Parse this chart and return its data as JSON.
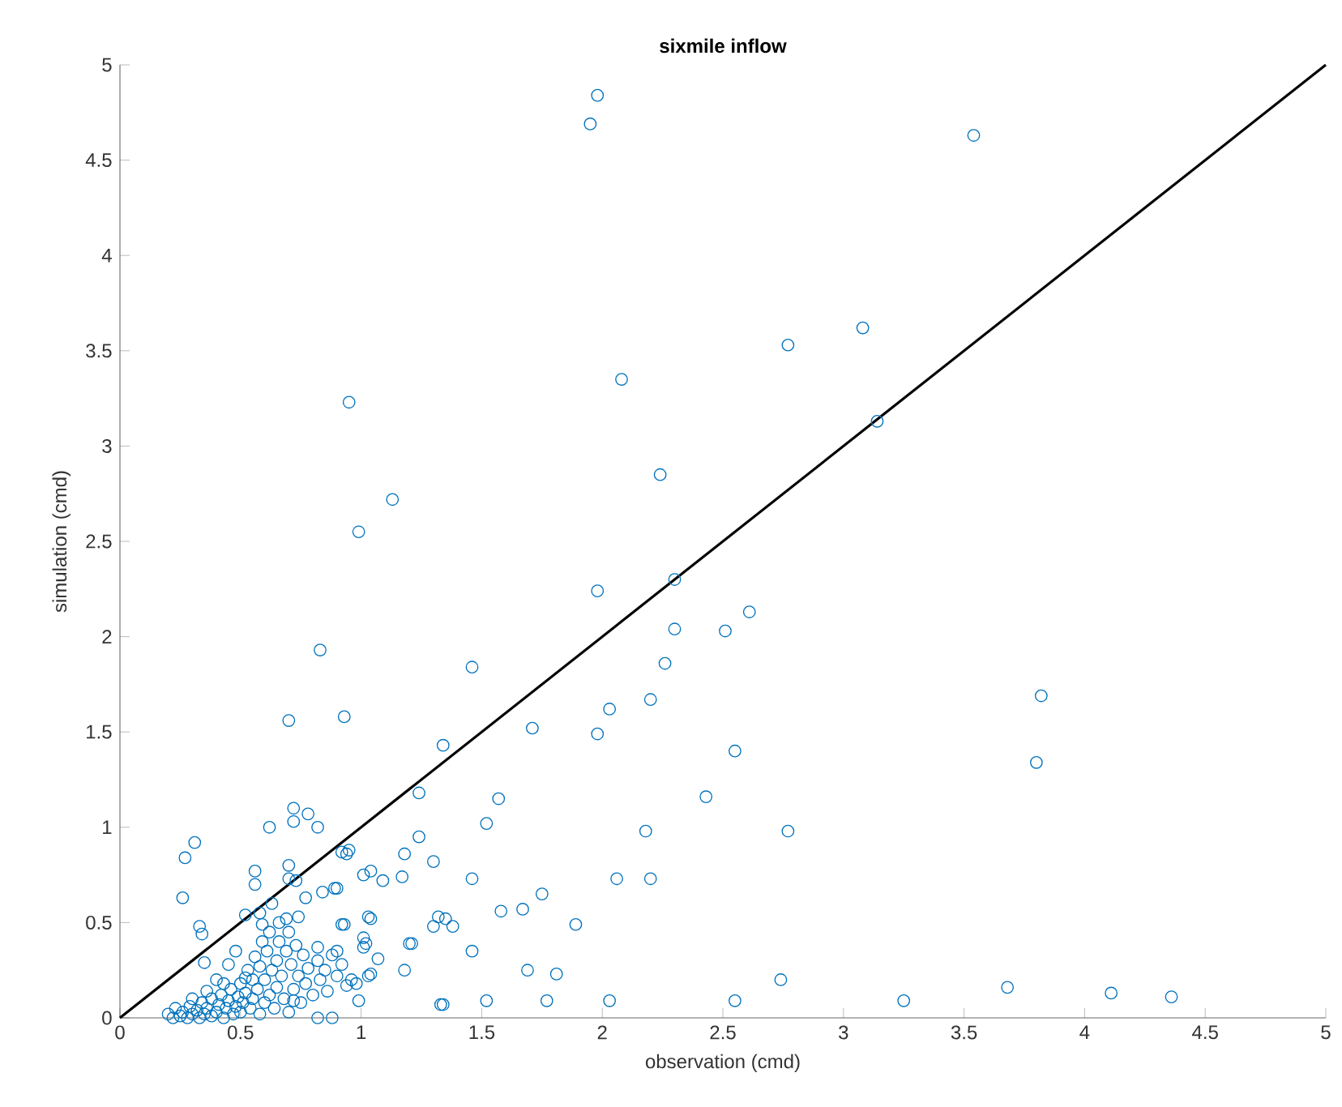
{
  "chart_data": {
    "type": "scatter",
    "title": "sixmile inflow",
    "xlabel": "observation (cmd)",
    "ylabel": "simulation (cmd)",
    "xlim": [
      0,
      5
    ],
    "ylim": [
      0,
      5
    ],
    "xticks": [
      0,
      0.5,
      1,
      1.5,
      2,
      2.5,
      3,
      3.5,
      4,
      4.5,
      5
    ],
    "yticks": [
      0,
      0.5,
      1,
      1.5,
      2,
      2.5,
      3,
      3.5,
      4,
      4.5,
      5
    ],
    "grid": false,
    "legend": false,
    "series": [
      {
        "marker": "circle",
        "color": "#0072bd",
        "x": [
          1.98,
          1.95,
          3.54,
          0.95,
          2.08,
          3.08,
          2.77,
          3.14,
          1.13,
          2.24,
          0.99,
          2.3,
          1.98,
          2.61,
          2.51,
          2.3,
          2.26,
          0.83,
          1.46,
          3.82,
          0.7,
          0.93,
          2.03,
          2.2,
          1.71,
          1.98,
          1.34,
          2.55,
          3.8,
          2.43,
          1.57,
          1.24,
          2.77,
          2.18,
          1.52,
          2.06,
          2.2,
          1.46,
          1.3,
          1.18,
          1.24,
          1.17,
          1.09,
          1.04,
          1.01,
          0.94,
          0.95,
          0.89,
          1.75,
          1.58,
          1.67,
          1.89,
          0.93,
          1.04,
          1.3,
          1.35,
          1.38,
          1.01,
          1.01,
          1.2,
          1.07,
          1.46,
          1.18,
          1.03,
          1.69,
          1.81,
          0.99,
          1.33,
          1.34,
          1.52,
          1.77,
          2.03,
          2.55,
          2.74,
          3.25,
          3.68,
          4.11,
          4.36,
          0.72,
          0.78,
          0.72,
          0.82,
          0.62,
          0.31,
          0.27,
          0.92,
          0.7,
          0.56,
          0.7,
          0.73,
          0.56,
          0.26,
          0.9,
          0.84,
          0.77,
          0.52,
          0.33,
          0.34,
          0.74,
          1.03,
          1.32,
          0.92,
          0.59,
          0.69,
          1.02,
          1.21,
          0.82,
          0.9,
          0.35,
          0.43,
          0.52,
          0.96,
          0.98,
          1.04,
          0.72,
          0.82,
          0.88,
          0.2,
          0.22,
          0.23,
          0.25,
          0.26,
          0.28,
          0.29,
          0.3,
          0.32,
          0.33,
          0.34,
          0.35,
          0.36,
          0.38,
          0.38,
          0.4,
          0.41,
          0.42,
          0.43,
          0.44,
          0.45,
          0.46,
          0.47,
          0.48,
          0.49,
          0.5,
          0.5,
          0.51,
          0.52,
          0.53,
          0.54,
          0.55,
          0.55,
          0.56,
          0.57,
          0.58,
          0.58,
          0.59,
          0.6,
          0.6,
          0.61,
          0.62,
          0.62,
          0.63,
          0.64,
          0.65,
          0.65,
          0.66,
          0.67,
          0.68,
          0.69,
          0.7,
          0.7,
          0.71,
          0.72,
          0.73,
          0.74,
          0.75,
          0.76,
          0.77,
          0.78,
          0.8,
          0.82,
          0.83,
          0.85,
          0.86,
          0.88,
          0.9,
          0.92,
          0.94,
          0.58,
          0.63,
          0.66,
          0.45,
          0.48,
          0.4,
          0.36,
          0.3
        ],
        "values": [
          4.84,
          4.69,
          4.63,
          3.23,
          3.35,
          3.62,
          3.53,
          3.13,
          2.72,
          2.85,
          2.55,
          2.3,
          2.24,
          2.13,
          2.03,
          2.04,
          1.86,
          1.93,
          1.84,
          1.69,
          1.56,
          1.58,
          1.62,
          1.67,
          1.52,
          1.49,
          1.43,
          1.4,
          1.34,
          1.16,
          1.15,
          1.18,
          0.98,
          0.98,
          1.02,
          0.73,
          0.73,
          0.73,
          0.82,
          0.86,
          0.95,
          0.74,
          0.72,
          0.77,
          0.75,
          0.86,
          0.88,
          0.68,
          0.65,
          0.56,
          0.57,
          0.49,
          0.49,
          0.52,
          0.48,
          0.52,
          0.48,
          0.42,
          0.37,
          0.39,
          0.31,
          0.35,
          0.25,
          0.22,
          0.25,
          0.23,
          0.09,
          0.07,
          0.07,
          0.09,
          0.09,
          0.09,
          0.09,
          0.2,
          0.09,
          0.16,
          0.13,
          0.11,
          1.1,
          1.07,
          1.03,
          1.0,
          1.0,
          0.92,
          0.84,
          0.87,
          0.8,
          0.77,
          0.73,
          0.72,
          0.7,
          0.63,
          0.68,
          0.66,
          0.63,
          0.54,
          0.48,
          0.44,
          0.53,
          0.53,
          0.53,
          0.49,
          0.49,
          0.52,
          0.39,
          0.39,
          0.37,
          0.35,
          0.29,
          0.18,
          0.21,
          0.2,
          0.18,
          0.23,
          0.09,
          0.0,
          0.0,
          0.02,
          0.0,
          0.05,
          0.01,
          0.03,
          0.0,
          0.06,
          0.02,
          0.04,
          0.0,
          0.08,
          0.02,
          0.05,
          0.01,
          0.1,
          0.03,
          0.07,
          0.12,
          0.0,
          0.05,
          0.09,
          0.15,
          0.02,
          0.06,
          0.11,
          0.18,
          0.03,
          0.08,
          0.13,
          0.25,
          0.05,
          0.1,
          0.2,
          0.32,
          0.15,
          0.02,
          0.27,
          0.4,
          0.08,
          0.2,
          0.35,
          0.12,
          0.45,
          0.25,
          0.05,
          0.3,
          0.16,
          0.4,
          0.22,
          0.1,
          0.35,
          0.45,
          0.03,
          0.28,
          0.15,
          0.38,
          0.22,
          0.08,
          0.33,
          0.18,
          0.26,
          0.12,
          0.3,
          0.2,
          0.25,
          0.14,
          0.33,
          0.22,
          0.28,
          0.17,
          0.55,
          0.6,
          0.5,
          0.28,
          0.35,
          0.2,
          0.14,
          0.1
        ]
      },
      {
        "type": "line",
        "marker": "none",
        "color": "#000000",
        "x": [
          0,
          5
        ],
        "values": [
          0,
          5
        ]
      }
    ]
  }
}
